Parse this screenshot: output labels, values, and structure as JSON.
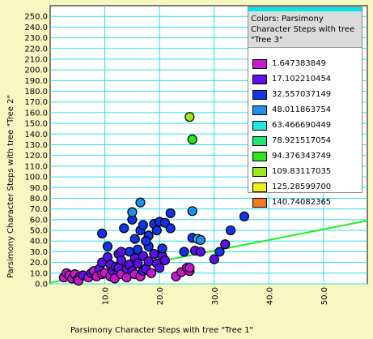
{
  "chart_data": {
    "type": "scatter",
    "xlabel": "Parsimony Character Steps with tree \"Tree 1\"",
    "ylabel": "Parsimony Character Steps with tree \"Tree 2\"",
    "xlim": [
      0,
      58
    ],
    "ylim": [
      0,
      260
    ],
    "x_ticks": [
      10.0,
      20.0,
      30.0,
      40.0,
      50.0
    ],
    "x_tick_labels": [
      "10.0",
      "20.0",
      "30.0",
      "40.0",
      "50.0"
    ],
    "y_ticks": [
      0,
      10,
      20,
      30,
      40,
      50,
      60,
      70,
      80,
      90,
      100,
      110,
      120,
      130,
      140,
      150,
      160,
      170,
      180,
      190,
      200,
      210,
      220,
      230,
      240,
      250
    ],
    "y_tick_labels": [
      "0.0",
      "10.0",
      "20.0",
      "30.0",
      "40.0",
      "50.0",
      "60.0",
      "70.0",
      "80.0",
      "90.0",
      "100.0",
      "110.0",
      "120.0",
      "130.0",
      "140.0",
      "150.0",
      "160.0",
      "170.0",
      "180.0",
      "190.0",
      "200.0",
      "210.0",
      "220.0",
      "230.0",
      "240.0",
      "250.0"
    ],
    "grid": true,
    "trend_line": {
      "x": [
        0,
        58
      ],
      "y": [
        1,
        59
      ]
    },
    "legend": {
      "title": "Colors: Parsimony Character Steps with tree \"Tree 3\"",
      "placement": "top-right",
      "entries": [
        {
          "label": "1.647383849",
          "color": "#c817cf"
        },
        {
          "label": "17.102210454",
          "color": "#5a10e8"
        },
        {
          "label": "32.557037149",
          "color": "#1432e6"
        },
        {
          "label": "48.011863754",
          "color": "#1e8fee"
        },
        {
          "label": "63.466690449",
          "color": "#1ee6e0"
        },
        {
          "label": "78.921517054",
          "color": "#1ee672"
        },
        {
          "label": "94.376343749",
          "color": "#2ee61e"
        },
        {
          "label": "109.83117035",
          "color": "#9ee61e"
        },
        {
          "label": "125.28599700",
          "color": "#f0ee1e"
        },
        {
          "label": "140.74082365",
          "color": "#f07b1e"
        }
      ]
    },
    "points": [
      {
        "x": 2.5,
        "y": 6,
        "c": 0
      },
      {
        "x": 3,
        "y": 10,
        "c": 0
      },
      {
        "x": 3.5,
        "y": 8,
        "c": 0
      },
      {
        "x": 4,
        "y": 5,
        "c": 0
      },
      {
        "x": 4.5,
        "y": 9,
        "c": 0
      },
      {
        "x": 5,
        "y": 4,
        "c": 0
      },
      {
        "x": 5.5,
        "y": 7,
        "c": 0
      },
      {
        "x": 5.2,
        "y": 3,
        "c": 0
      },
      {
        "x": 6,
        "y": 8,
        "c": 1
      },
      {
        "x": 7,
        "y": 6,
        "c": 0
      },
      {
        "x": 7.5,
        "y": 10,
        "c": 1
      },
      {
        "x": 8,
        "y": 12,
        "c": 0
      },
      {
        "x": 8.5,
        "y": 7,
        "c": 0
      },
      {
        "x": 9,
        "y": 14,
        "c": 1
      },
      {
        "x": 9.5,
        "y": 20,
        "c": 1
      },
      {
        "x": 9.5,
        "y": 9,
        "c": 0
      },
      {
        "x": 10,
        "y": 10,
        "c": 0
      },
      {
        "x": 10.5,
        "y": 25,
        "c": 1
      },
      {
        "x": 11,
        "y": 18,
        "c": 1
      },
      {
        "x": 11,
        "y": 7,
        "c": 0
      },
      {
        "x": 11.5,
        "y": 12,
        "c": 1
      },
      {
        "x": 11.8,
        "y": 5,
        "c": 0
      },
      {
        "x": 12,
        "y": 16,
        "c": 1
      },
      {
        "x": 12.5,
        "y": 28,
        "c": 1
      },
      {
        "x": 12.5,
        "y": 15,
        "c": 1
      },
      {
        "x": 13,
        "y": 9,
        "c": 0
      },
      {
        "x": 13,
        "y": 22,
        "c": 1
      },
      {
        "x": 14,
        "y": 14,
        "c": 1
      },
      {
        "x": 14,
        "y": 6,
        "c": 0
      },
      {
        "x": 14.5,
        "y": 30,
        "c": 2
      },
      {
        "x": 14.5,
        "y": 18,
        "c": 1
      },
      {
        "x": 15,
        "y": 12,
        "c": 1
      },
      {
        "x": 15.5,
        "y": 24,
        "c": 1
      },
      {
        "x": 15.5,
        "y": 9,
        "c": 0
      },
      {
        "x": 16,
        "y": 32,
        "c": 2
      },
      {
        "x": 16,
        "y": 19,
        "c": 1
      },
      {
        "x": 16.5,
        "y": 7,
        "c": 0
      },
      {
        "x": 17,
        "y": 12,
        "c": 1
      },
      {
        "x": 17,
        "y": 26,
        "c": 1
      },
      {
        "x": 17.5,
        "y": 14,
        "c": 1
      },
      {
        "x": 18,
        "y": 21,
        "c": 1
      },
      {
        "x": 18,
        "y": 35,
        "c": 2
      },
      {
        "x": 18.5,
        "y": 10,
        "c": 0
      },
      {
        "x": 19,
        "y": 28,
        "c": 1
      },
      {
        "x": 19.5,
        "y": 19,
        "c": 1
      },
      {
        "x": 20,
        "y": 15,
        "c": 1
      },
      {
        "x": 20.5,
        "y": 26,
        "c": 1
      },
      {
        "x": 21,
        "y": 22,
        "c": 1
      },
      {
        "x": 9.5,
        "y": 47,
        "c": 2
      },
      {
        "x": 10.5,
        "y": 35,
        "c": 2
      },
      {
        "x": 13,
        "y": 30,
        "c": 1
      },
      {
        "x": 13.5,
        "y": 52,
        "c": 2
      },
      {
        "x": 15,
        "y": 60,
        "c": 2
      },
      {
        "x": 15,
        "y": 67,
        "c": 3
      },
      {
        "x": 15.5,
        "y": 42,
        "c": 2
      },
      {
        "x": 16.5,
        "y": 50,
        "c": 2
      },
      {
        "x": 17,
        "y": 55,
        "c": 2
      },
      {
        "x": 16.5,
        "y": 76,
        "c": 3
      },
      {
        "x": 18,
        "y": 45,
        "c": 2
      },
      {
        "x": 17.5,
        "y": 40,
        "c": 2
      },
      {
        "x": 19,
        "y": 56,
        "c": 2
      },
      {
        "x": 19.5,
        "y": 50,
        "c": 2
      },
      {
        "x": 20,
        "y": 58,
        "c": 2
      },
      {
        "x": 20.5,
        "y": 33,
        "c": 2
      },
      {
        "x": 21,
        "y": 57,
        "c": 2
      },
      {
        "x": 22,
        "y": 66,
        "c": 2
      },
      {
        "x": 22,
        "y": 52,
        "c": 2
      },
      {
        "x": 23,
        "y": 7,
        "c": 0
      },
      {
        "x": 24,
        "y": 11,
        "c": 0
      },
      {
        "x": 24.5,
        "y": 30,
        "c": 2
      },
      {
        "x": 25,
        "y": 15,
        "c": 0
      },
      {
        "x": 25.5,
        "y": 12,
        "c": 0
      },
      {
        "x": 25.5,
        "y": 15,
        "c": 0
      },
      {
        "x": 26,
        "y": 68,
        "c": 3
      },
      {
        "x": 26,
        "y": 43,
        "c": 2
      },
      {
        "x": 26.5,
        "y": 31,
        "c": 1
      },
      {
        "x": 27,
        "y": 42,
        "c": 4
      },
      {
        "x": 27.5,
        "y": 30,
        "c": 1
      },
      {
        "x": 27.5,
        "y": 41,
        "c": 3
      },
      {
        "x": 30,
        "y": 23,
        "c": 1
      },
      {
        "x": 31,
        "y": 30,
        "c": 2
      },
      {
        "x": 32,
        "y": 37,
        "c": 1
      },
      {
        "x": 33,
        "y": 50,
        "c": 2
      },
      {
        "x": 35.5,
        "y": 63,
        "c": 2
      },
      {
        "x": 25.5,
        "y": 156,
        "c": 7
      },
      {
        "x": 26,
        "y": 135,
        "c": 6
      }
    ]
  }
}
